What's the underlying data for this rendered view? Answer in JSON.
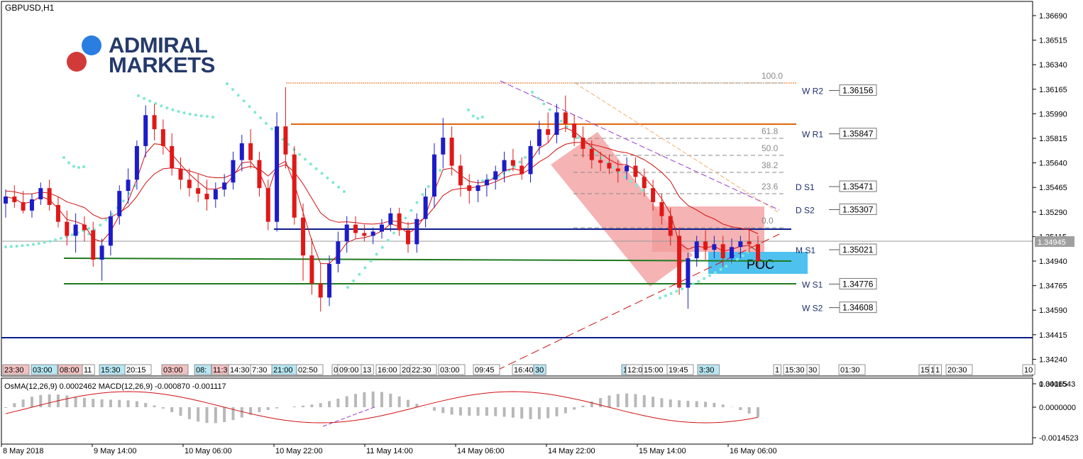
{
  "window": {
    "symbol_title": "GBPUSD,H1"
  },
  "brand": {
    "name_line1": "ADMIRAL",
    "name_line2": "MARKETS",
    "dot_blue": "#2a7de1",
    "dot_red": "#d23a3a"
  },
  "price_axis": {
    "ticks": [
      "1.36690",
      "1.36515",
      "1.36340",
      "1.36165",
      "1.35990",
      "1.35815",
      "1.35640",
      "1.35465",
      "1.35290",
      "1.35115",
      "1.34940",
      "1.34765",
      "1.34590",
      "1.34415",
      "1.34240",
      "1.34065"
    ],
    "current_price": "1.34945"
  },
  "pivots": [
    {
      "name": "W R2",
      "value": "1.36156",
      "color": "#e0650f"
    },
    {
      "name": "W R1",
      "value": "1.35847",
      "color": "#e0650f"
    },
    {
      "name": "D S1",
      "value": "1.35471",
      "color": "#1f2f6a"
    },
    {
      "name": "D S2",
      "value": "1.35307",
      "color": "#1f2f6a"
    },
    {
      "name": "M S1",
      "value": "1.35021",
      "color": "#0c1e8c"
    },
    {
      "name": "W S1",
      "value": "1.34776",
      "color": "#1f7a1f"
    },
    {
      "name": "W S2",
      "value": "1.34608",
      "color": "#1f7a1f"
    }
  ],
  "fibonacci_levels": [
    "100.0",
    "61.8",
    "50.0",
    "38.2",
    "23.6",
    "0.0"
  ],
  "poc_label": "POC",
  "session_tags": [
    "23:30",
    "03:00",
    "08:00",
    "11",
    "15:30",
    "20:15",
    "03:00",
    "08:",
    "11:3",
    "14:30",
    "7:30",
    "21:00",
    "02:50",
    "0",
    "09:00",
    "13",
    "16:00",
    "20",
    "22:30",
    "03:00",
    "09:45",
    "16:40",
    "30",
    "1",
    "12:0",
    "15:00",
    "19:45",
    "3:30",
    "1",
    "15:30",
    "30",
    "01:30",
    "15",
    "1",
    "1",
    "20:30",
    "10"
  ],
  "indicator": {
    "title": "OsMA(12,26,9) 0.0002462 MACD(12,26,9) -0.000870 -0.001117",
    "axis_ticks": [
      "0.0011543",
      "0.0000000",
      "-0.0014523"
    ]
  },
  "time_axis": [
    "8 May 2018",
    "9 May 14:00",
    "10 May 06:00",
    "10 May 22:00",
    "11 May 14:00",
    "14 May 06:00",
    "14 May 22:00",
    "15 May 14:00",
    "16 May 06:00"
  ],
  "colors": {
    "bull": "#1c1cc8",
    "bear": "#e01818",
    "ma": "#d01010",
    "psar": "#7fe8d2",
    "red_channel": "#f19a9a",
    "poc_box": "#4fc1ef",
    "osma_bar": "#b8b8b8"
  },
  "chart_data": {
    "type": "candlestick",
    "symbol": "GBPUSD",
    "timeframe": "H1",
    "y_range": [
      1.3395,
      1.368
    ],
    "current_price": 1.34945,
    "levels": [
      {
        "name": "W R2",
        "value": 1.36156
      },
      {
        "name": "W R1",
        "value": 1.35847
      },
      {
        "name": "D S1",
        "value": 1.35471
      },
      {
        "name": "D S2",
        "value": 1.35307
      },
      {
        "name": "M S1",
        "value": 1.35021
      },
      {
        "name": "W S1",
        "value": 1.34776
      },
      {
        "name": "W S2",
        "value": 1.34608
      }
    ],
    "candles": [
      [
        1.3535,
        1.3545,
        1.3525,
        1.354
      ],
      [
        1.354,
        1.3548,
        1.3532,
        1.3536
      ],
      [
        1.3536,
        1.3544,
        1.3528,
        1.353
      ],
      [
        1.353,
        1.3542,
        1.3525,
        1.3538
      ],
      [
        1.3538,
        1.355,
        1.3534,
        1.3546
      ],
      [
        1.3546,
        1.3552,
        1.353,
        1.3534
      ],
      [
        1.3534,
        1.354,
        1.3518,
        1.3522
      ],
      [
        1.3522,
        1.353,
        1.3505,
        1.3512
      ],
      [
        1.3512,
        1.3528,
        1.35,
        1.352
      ],
      [
        1.352,
        1.3526,
        1.3508,
        1.3516
      ],
      [
        1.3516,
        1.3522,
        1.349,
        1.3495
      ],
      [
        1.3495,
        1.351,
        1.348,
        1.3505
      ],
      [
        1.3505,
        1.353,
        1.3498,
        1.3526
      ],
      [
        1.3526,
        1.3548,
        1.352,
        1.3544
      ],
      [
        1.3544,
        1.356,
        1.3535,
        1.3552
      ],
      [
        1.3552,
        1.358,
        1.3545,
        1.3576
      ],
      [
        1.3576,
        1.3605,
        1.3568,
        1.3598
      ],
      [
        1.3598,
        1.3606,
        1.358,
        1.3588
      ],
      [
        1.3588,
        1.3595,
        1.357,
        1.3576
      ],
      [
        1.3576,
        1.3585,
        1.3555,
        1.356
      ],
      [
        1.356,
        1.3568,
        1.3545,
        1.3552
      ],
      [
        1.3552,
        1.356,
        1.354,
        1.3546
      ],
      [
        1.3546,
        1.3556,
        1.3536,
        1.3542
      ],
      [
        1.3542,
        1.3552,
        1.353,
        1.3538
      ],
      [
        1.3538,
        1.355,
        1.3532,
        1.3545
      ],
      [
        1.3545,
        1.3556,
        1.354,
        1.355
      ],
      [
        1.355,
        1.3572,
        1.3545,
        1.3566
      ],
      [
        1.3566,
        1.3584,
        1.3558,
        1.3578
      ],
      [
        1.3578,
        1.3588,
        1.356,
        1.3566
      ],
      [
        1.3566,
        1.3572,
        1.354,
        1.3546
      ],
      [
        1.3546,
        1.3552,
        1.3516,
        1.3522
      ],
      [
        1.3522,
        1.36,
        1.3515,
        1.359
      ],
      [
        1.359,
        1.3618,
        1.356,
        1.357
      ],
      [
        1.357,
        1.3576,
        1.352,
        1.3525
      ],
      [
        1.3525,
        1.3535,
        1.348,
        1.3498
      ],
      [
        1.3498,
        1.351,
        1.347,
        1.3478
      ],
      [
        1.3478,
        1.3492,
        1.3458,
        1.3468
      ],
      [
        1.3468,
        1.3498,
        1.3462,
        1.3492
      ],
      [
        1.3492,
        1.3515,
        1.3486,
        1.3508
      ],
      [
        1.3508,
        1.3526,
        1.35,
        1.352
      ],
      [
        1.352,
        1.3526,
        1.351,
        1.3514
      ],
      [
        1.3514,
        1.352,
        1.3508,
        1.3512
      ],
      [
        1.3512,
        1.3518,
        1.3506,
        1.3515
      ],
      [
        1.3515,
        1.3524,
        1.351,
        1.352
      ],
      [
        1.352,
        1.3532,
        1.3515,
        1.3528
      ],
      [
        1.3528,
        1.3532,
        1.3512,
        1.3516
      ],
      [
        1.3516,
        1.3522,
        1.35,
        1.3506
      ],
      [
        1.3506,
        1.3528,
        1.35,
        1.3524
      ],
      [
        1.3524,
        1.3546,
        1.3518,
        1.354
      ],
      [
        1.354,
        1.3578,
        1.3532,
        1.357
      ],
      [
        1.357,
        1.3596,
        1.356,
        1.3582
      ],
      [
        1.3582,
        1.359,
        1.3555,
        1.3562
      ],
      [
        1.3562,
        1.357,
        1.354,
        1.3548
      ],
      [
        1.3548,
        1.3556,
        1.3535,
        1.3544
      ],
      [
        1.3544,
        1.3552,
        1.3536,
        1.3548
      ],
      [
        1.3548,
        1.3556,
        1.354,
        1.3552
      ],
      [
        1.3552,
        1.3562,
        1.3545,
        1.3558
      ],
      [
        1.3558,
        1.3572,
        1.355,
        1.3566
      ],
      [
        1.3566,
        1.3574,
        1.3558,
        1.3562
      ],
      [
        1.3562,
        1.3568,
        1.3552,
        1.3556
      ],
      [
        1.3556,
        1.358,
        1.355,
        1.3576
      ],
      [
        1.3576,
        1.3594,
        1.357,
        1.3588
      ],
      [
        1.3588,
        1.36,
        1.3578,
        1.3584
      ],
      [
        1.3584,
        1.3606,
        1.3578,
        1.36
      ],
      [
        1.36,
        1.3612,
        1.3586,
        1.3592
      ],
      [
        1.3592,
        1.3598,
        1.3576,
        1.3582
      ],
      [
        1.3582,
        1.359,
        1.3568,
        1.3574
      ],
      [
        1.3574,
        1.358,
        1.356,
        1.3566
      ],
      [
        1.3566,
        1.3572,
        1.3558,
        1.3564
      ],
      [
        1.3564,
        1.357,
        1.3556,
        1.356
      ],
      [
        1.356,
        1.3566,
        1.355,
        1.3558
      ],
      [
        1.3558,
        1.3568,
        1.3552,
        1.3562
      ],
      [
        1.3562,
        1.3568,
        1.355,
        1.3554
      ],
      [
        1.3554,
        1.356,
        1.354,
        1.3546
      ],
      [
        1.3546,
        1.3552,
        1.353,
        1.3536
      ],
      [
        1.3536,
        1.3542,
        1.352,
        1.3526
      ],
      [
        1.3526,
        1.3532,
        1.3505,
        1.3512
      ],
      [
        1.3512,
        1.3518,
        1.347,
        1.3475
      ],
      [
        1.3475,
        1.35,
        1.346,
        1.3496
      ],
      [
        1.3496,
        1.3512,
        1.349,
        1.3508
      ],
      [
        1.3508,
        1.3516,
        1.3495,
        1.3502
      ],
      [
        1.3502,
        1.3512,
        1.3496,
        1.3506
      ],
      [
        1.3506,
        1.3512,
        1.349,
        1.3496
      ],
      [
        1.3496,
        1.351,
        1.3492,
        1.3504
      ],
      [
        1.3504,
        1.3512,
        1.3496,
        1.3508
      ],
      [
        1.3508,
        1.3518,
        1.35,
        1.3506
      ],
      [
        1.3506,
        1.3512,
        1.349,
        1.3494
      ]
    ]
  }
}
